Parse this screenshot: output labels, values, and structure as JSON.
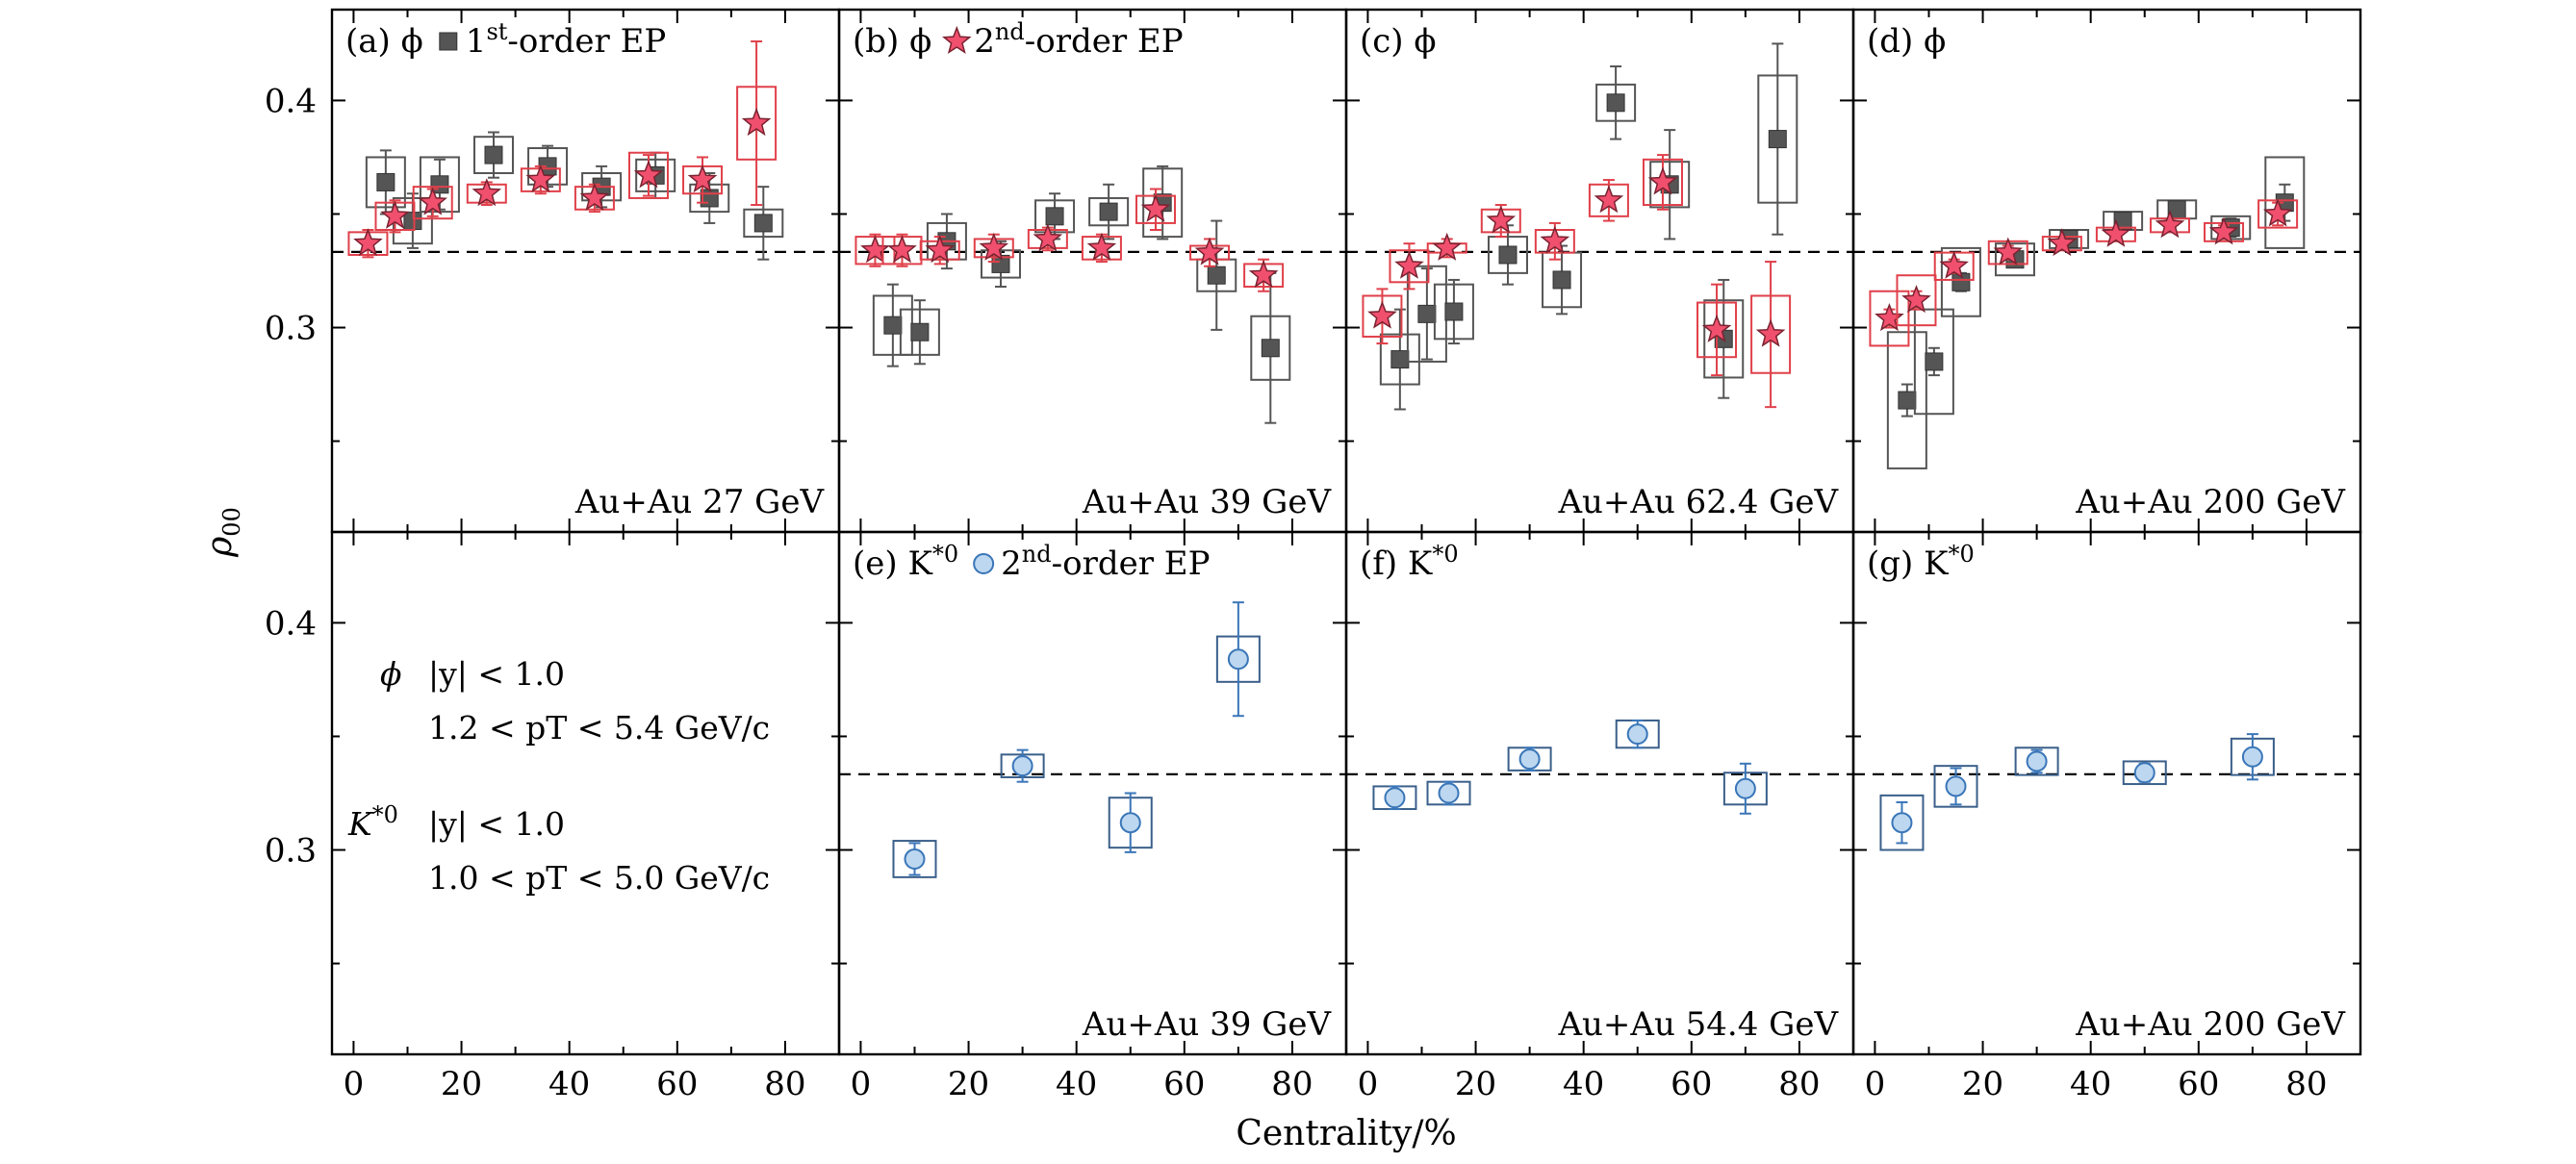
{
  "chart_data": {
    "type": "scatter",
    "xlabel": "Centrality/%",
    "ylabel": "ρ00",
    "xlim": [
      -4,
      90
    ],
    "ylim": [
      0.21,
      0.44
    ],
    "x_ticks": [
      0,
      20,
      40,
      60,
      80
    ],
    "y_ticks": [
      0.3,
      0.4
    ],
    "reference_line": 0.3333,
    "grid": false,
    "panels": [
      {
        "id": "a",
        "row": 0,
        "col": 0,
        "tag": "(a) ϕ",
        "legend_marker": "square",
        "legend_order": "1",
        "legend_sup": "st",
        "legend_text": "-order EP",
        "collision": "Au+Au 27 GeV",
        "series": [
          {
            "marker": "square",
            "points": [
              {
                "x": 5,
                "y": 0.364,
                "stat": 0.014,
                "sys": 0.011
              },
              {
                "x": 10,
                "y": 0.347,
                "stat": 0.012,
                "sys": 0.01
              },
              {
                "x": 15,
                "y": 0.363,
                "stat": 0.011,
                "sys": 0.012
              },
              {
                "x": 25,
                "y": 0.376,
                "stat": 0.01,
                "sys": 0.008
              },
              {
                "x": 35,
                "y": 0.371,
                "stat": 0.009,
                "sys": 0.008
              },
              {
                "x": 45,
                "y": 0.362,
                "stat": 0.009,
                "sys": 0.006
              },
              {
                "x": 55,
                "y": 0.367,
                "stat": 0.01,
                "sys": 0.007
              },
              {
                "x": 65,
                "y": 0.357,
                "stat": 0.011,
                "sys": 0.006
              },
              {
                "x": 75,
                "y": 0.346,
                "stat": 0.016,
                "sys": 0.006
              }
            ]
          },
          {
            "marker": "star",
            "points": [
              {
                "x": 3,
                "y": 0.337,
                "stat": 0.006,
                "sys": 0.005
              },
              {
                "x": 8,
                "y": 0.349,
                "stat": 0.007,
                "sys": 0.006
              },
              {
                "x": 15,
                "y": 0.355,
                "stat": 0.006,
                "sys": 0.007
              },
              {
                "x": 25,
                "y": 0.359,
                "stat": 0.005,
                "sys": 0.004
              },
              {
                "x": 35,
                "y": 0.365,
                "stat": 0.006,
                "sys": 0.005
              },
              {
                "x": 45,
                "y": 0.357,
                "stat": 0.006,
                "sys": 0.005
              },
              {
                "x": 55,
                "y": 0.367,
                "stat": 0.009,
                "sys": 0.01
              },
              {
                "x": 65,
                "y": 0.365,
                "stat": 0.01,
                "sys": 0.006
              },
              {
                "x": 75,
                "y": 0.39,
                "stat": 0.036,
                "sys": 0.016
              }
            ]
          }
        ]
      },
      {
        "id": "b",
        "row": 0,
        "col": 1,
        "tag": "(b) ϕ",
        "legend_marker": "star",
        "legend_order": "2",
        "legend_sup": "nd",
        "legend_text": "-order EP",
        "collision": "Au+Au 39 GeV",
        "series": [
          {
            "marker": "square",
            "points": [
              {
                "x": 5,
                "y": 0.301,
                "stat": 0.018,
                "sys": 0.013
              },
              {
                "x": 10,
                "y": 0.298,
                "stat": 0.014,
                "sys": 0.01
              },
              {
                "x": 15,
                "y": 0.338,
                "stat": 0.012,
                "sys": 0.008
              },
              {
                "x": 25,
                "y": 0.328,
                "stat": 0.01,
                "sys": 0.006
              },
              {
                "x": 35,
                "y": 0.349,
                "stat": 0.01,
                "sys": 0.007
              },
              {
                "x": 45,
                "y": 0.351,
                "stat": 0.012,
                "sys": 0.006
              },
              {
                "x": 55,
                "y": 0.355,
                "stat": 0.016,
                "sys": 0.015
              },
              {
                "x": 65,
                "y": 0.323,
                "stat": 0.024,
                "sys": 0.007
              },
              {
                "x": 75,
                "y": 0.291,
                "stat": 0.033,
                "sys": 0.014
              }
            ]
          },
          {
            "marker": "star",
            "points": [
              {
                "x": 3,
                "y": 0.334,
                "stat": 0.007,
                "sys": 0.006
              },
              {
                "x": 8,
                "y": 0.334,
                "stat": 0.007,
                "sys": 0.006
              },
              {
                "x": 15,
                "y": 0.334,
                "stat": 0.006,
                "sys": 0.004
              },
              {
                "x": 25,
                "y": 0.335,
                "stat": 0.006,
                "sys": 0.004
              },
              {
                "x": 35,
                "y": 0.339,
                "stat": 0.005,
                "sys": 0.004
              },
              {
                "x": 45,
                "y": 0.335,
                "stat": 0.006,
                "sys": 0.005
              },
              {
                "x": 55,
                "y": 0.352,
                "stat": 0.009,
                "sys": 0.006
              },
              {
                "x": 65,
                "y": 0.333,
                "stat": 0.006,
                "sys": 0.003
              },
              {
                "x": 75,
                "y": 0.323,
                "stat": 0.007,
                "sys": 0.005
              }
            ]
          }
        ]
      },
      {
        "id": "c",
        "row": 0,
        "col": 2,
        "tag": "(c) ϕ",
        "legend_marker": "",
        "legend_order": "",
        "legend_sup": "",
        "legend_text": "",
        "collision": "Au+Au 62.4 GeV",
        "series": [
          {
            "marker": "square",
            "points": [
              {
                "x": 5,
                "y": 0.286,
                "stat": 0.022,
                "sys": 0.011
              },
              {
                "x": 10,
                "y": 0.306,
                "stat": 0.02,
                "sys": 0.021
              },
              {
                "x": 15,
                "y": 0.307,
                "stat": 0.014,
                "sys": 0.012
              },
              {
                "x": 25,
                "y": 0.332,
                "stat": 0.013,
                "sys": 0.008
              },
              {
                "x": 35,
                "y": 0.321,
                "stat": 0.015,
                "sys": 0.012
              },
              {
                "x": 45,
                "y": 0.399,
                "stat": 0.016,
                "sys": 0.008
              },
              {
                "x": 55,
                "y": 0.363,
                "stat": 0.024,
                "sys": 0.01
              },
              {
                "x": 65,
                "y": 0.295,
                "stat": 0.026,
                "sys": 0.017
              },
              {
                "x": 75,
                "y": 0.383,
                "stat": 0.042,
                "sys": 0.028
              }
            ]
          },
          {
            "marker": "star",
            "points": [
              {
                "x": 3,
                "y": 0.305,
                "stat": 0.012,
                "sys": 0.009
              },
              {
                "x": 8,
                "y": 0.327,
                "stat": 0.01,
                "sys": 0.007
              },
              {
                "x": 15,
                "y": 0.335,
                "stat": 0.004,
                "sys": 0.002
              },
              {
                "x": 25,
                "y": 0.347,
                "stat": 0.007,
                "sys": 0.005
              },
              {
                "x": 35,
                "y": 0.338,
                "stat": 0.008,
                "sys": 0.005
              },
              {
                "x": 45,
                "y": 0.356,
                "stat": 0.009,
                "sys": 0.007
              },
              {
                "x": 55,
                "y": 0.364,
                "stat": 0.012,
                "sys": 0.01
              },
              {
                "x": 65,
                "y": 0.299,
                "stat": 0.02,
                "sys": 0.012
              },
              {
                "x": 75,
                "y": 0.297,
                "stat": 0.032,
                "sys": 0.017
              }
            ]
          }
        ]
      },
      {
        "id": "d",
        "row": 0,
        "col": 3,
        "tag": "(d) ϕ",
        "legend_marker": "",
        "legend_order": "",
        "legend_sup": "",
        "legend_text": "",
        "collision": "Au+Au 200 GeV",
        "series": [
          {
            "marker": "square",
            "points": [
              {
                "x": 5,
                "y": 0.268,
                "stat": 0.007,
                "sys": 0.03
              },
              {
                "x": 10,
                "y": 0.285,
                "stat": 0.006,
                "sys": 0.023
              },
              {
                "x": 15,
                "y": 0.32,
                "stat": 0.004,
                "sys": 0.015
              },
              {
                "x": 25,
                "y": 0.33,
                "stat": 0.003,
                "sys": 0.007
              },
              {
                "x": 35,
                "y": 0.339,
                "stat": 0.003,
                "sys": 0.004
              },
              {
                "x": 45,
                "y": 0.347,
                "stat": 0.003,
                "sys": 0.004
              },
              {
                "x": 55,
                "y": 0.352,
                "stat": 0.003,
                "sys": 0.004
              },
              {
                "x": 65,
                "y": 0.344,
                "stat": 0.004,
                "sys": 0.005
              },
              {
                "x": 75,
                "y": 0.355,
                "stat": 0.008,
                "sys": 0.02
              }
            ]
          },
          {
            "marker": "star",
            "points": [
              {
                "x": 3,
                "y": 0.304,
                "stat": 0.004,
                "sys": 0.012
              },
              {
                "x": 8,
                "y": 0.312,
                "stat": 0.004,
                "sys": 0.011
              },
              {
                "x": 15,
                "y": 0.327,
                "stat": 0.003,
                "sys": 0.006
              },
              {
                "x": 25,
                "y": 0.333,
                "stat": 0.003,
                "sys": 0.005
              },
              {
                "x": 35,
                "y": 0.337,
                "stat": 0.002,
                "sys": 0.003
              },
              {
                "x": 45,
                "y": 0.341,
                "stat": 0.002,
                "sys": 0.003
              },
              {
                "x": 55,
                "y": 0.345,
                "stat": 0.002,
                "sys": 0.003
              },
              {
                "x": 65,
                "y": 0.342,
                "stat": 0.003,
                "sys": 0.004
              },
              {
                "x": 75,
                "y": 0.35,
                "stat": 0.005,
                "sys": 0.006
              }
            ]
          }
        ]
      },
      {
        "id": "e",
        "row": 1,
        "col": 1,
        "tag": "(e) K*0",
        "legend_marker": "circle",
        "legend_order": "2",
        "legend_sup": "nd",
        "legend_text": "-order EP",
        "collision": "Au+Au 39 GeV",
        "series": [
          {
            "marker": "circle",
            "points": [
              {
                "x": 10,
                "y": 0.296,
                "stat": 0.007,
                "sys": 0.008
              },
              {
                "x": 30,
                "y": 0.337,
                "stat": 0.007,
                "sys": 0.005
              },
              {
                "x": 50,
                "y": 0.312,
                "stat": 0.013,
                "sys": 0.011
              },
              {
                "x": 70,
                "y": 0.384,
                "stat": 0.025,
                "sys": 0.01
              }
            ]
          }
        ]
      },
      {
        "id": "f",
        "row": 1,
        "col": 2,
        "tag": "(f) K*0",
        "legend_marker": "",
        "legend_order": "",
        "legend_sup": "",
        "legend_text": "",
        "collision": "Au+Au 54.4 GeV",
        "series": [
          {
            "marker": "circle",
            "points": [
              {
                "x": 5,
                "y": 0.323,
                "stat": 0.005,
                "sys": 0.005
              },
              {
                "x": 15,
                "y": 0.325,
                "stat": 0.005,
                "sys": 0.005
              },
              {
                "x": 30,
                "y": 0.34,
                "stat": 0.005,
                "sys": 0.005
              },
              {
                "x": 50,
                "y": 0.351,
                "stat": 0.006,
                "sys": 0.006
              },
              {
                "x": 70,
                "y": 0.327,
                "stat": 0.011,
                "sys": 0.007
              }
            ]
          }
        ]
      },
      {
        "id": "g",
        "row": 1,
        "col": 3,
        "tag": "(g) K*0",
        "legend_marker": "",
        "legend_order": "",
        "legend_sup": "",
        "legend_text": "",
        "collision": "Au+Au 200 GeV",
        "series": [
          {
            "marker": "circle",
            "points": [
              {
                "x": 5,
                "y": 0.312,
                "stat": 0.009,
                "sys": 0.012
              },
              {
                "x": 15,
                "y": 0.328,
                "stat": 0.008,
                "sys": 0.009
              },
              {
                "x": 30,
                "y": 0.339,
                "stat": 0.005,
                "sys": 0.006
              },
              {
                "x": 50,
                "y": 0.334,
                "stat": 0.004,
                "sys": 0.005
              },
              {
                "x": 70,
                "y": 0.341,
                "stat": 0.01,
                "sys": 0.008
              }
            ]
          }
        ]
      }
    ],
    "info": {
      "phi_label": "ϕ",
      "phi_rapidity": "|y| < 1.0",
      "phi_pt": "1.2 < pT < 5.4 GeV/c",
      "kstar_label": "K*0",
      "kstar_rapidity": "|y| < 1.0",
      "kstar_pt": "1.0 < pT < 5.0 GeV/c"
    },
    "colors": {
      "square_fill": "#555555",
      "square_sys_box": "#555555",
      "star_fill": "#f0506e",
      "star_sys_box": "#e0404a",
      "circle_fill": "#bcd7ef",
      "circle_edge": "#3a76b8",
      "circle_sys_box": "#3a5f8a",
      "reference_line": "#000000"
    }
  }
}
